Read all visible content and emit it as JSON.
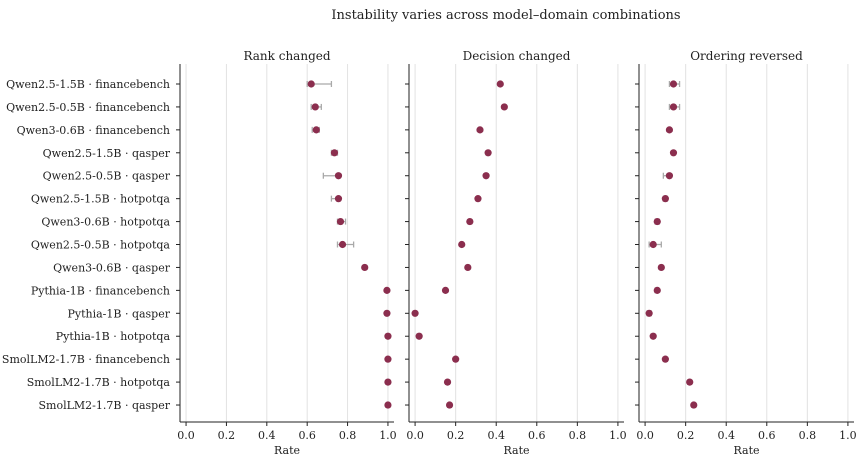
{
  "title": "Instability varies across model–domain combinations",
  "colors": {
    "point": "#8b2e4e",
    "errorbar": "#a9a9a9",
    "grid": "#e2e2e2",
    "axis": "#222222"
  },
  "chart_data": [
    {
      "type": "scatter",
      "subplot": "Rank changed",
      "categories": [
        "Qwen2.5-1.5B · financebench",
        "Qwen2.5-0.5B · financebench",
        "Qwen3-0.6B · financebench",
        "Qwen2.5-1.5B · qasper",
        "Qwen2.5-0.5B · qasper",
        "Qwen2.5-1.5B · hotpotqa",
        "Qwen3-0.6B · hotpotqa",
        "Qwen2.5-0.5B · hotpotqa",
        "Qwen3-0.6B · qasper",
        "Pythia-1B · financebench",
        "Pythia-1B · qasper",
        "Pythia-1B · hotpotqa",
        "SmolLM2-1.7B · financebench",
        "SmolLM2-1.7B · hotpotqa",
        "SmolLM2-1.7B · qasper"
      ],
      "values": [
        0.62,
        0.64,
        0.645,
        0.735,
        0.755,
        0.755,
        0.765,
        0.775,
        0.885,
        0.995,
        0.995,
        1.0,
        1.0,
        1.0,
        1.0
      ],
      "ci_low": [
        0.6,
        0.62,
        0.625,
        0.72,
        0.68,
        0.72,
        0.75,
        0.75,
        0.885,
        0.995,
        0.995,
        1.0,
        1.0,
        1.0,
        1.0
      ],
      "ci_high": [
        0.72,
        0.67,
        0.66,
        0.75,
        0.76,
        0.76,
        0.79,
        0.83,
        0.885,
        0.995,
        0.995,
        1.0,
        1.0,
        1.0,
        1.0
      ],
      "title": "Rank changed",
      "xlabel": "Rate",
      "xlim": [
        -0.03,
        1.03
      ],
      "xticks": [
        "0.0",
        "0.2",
        "0.4",
        "0.6",
        "0.8",
        "1.0"
      ],
      "grid": true
    },
    {
      "type": "scatter",
      "subplot": "Decision changed",
      "categories": [
        "Qwen2.5-1.5B · financebench",
        "Qwen2.5-0.5B · financebench",
        "Qwen3-0.6B · financebench",
        "Qwen2.5-1.5B · qasper",
        "Qwen2.5-0.5B · qasper",
        "Qwen2.5-1.5B · hotpotqa",
        "Qwen3-0.6B · hotpotqa",
        "Qwen2.5-0.5B · hotpotqa",
        "Qwen3-0.6B · qasper",
        "Pythia-1B · financebench",
        "Pythia-1B · qasper",
        "Pythia-1B · hotpotqa",
        "SmolLM2-1.7B · financebench",
        "SmolLM2-1.7B · hotpotqa",
        "SmolLM2-1.7B · qasper"
      ],
      "values": [
        0.42,
        0.44,
        0.32,
        0.36,
        0.35,
        0.31,
        0.27,
        0.23,
        0.26,
        0.15,
        0.0,
        0.02,
        0.2,
        0.16,
        0.17
      ],
      "ci_low": [
        0.42,
        0.44,
        0.32,
        0.36,
        0.35,
        0.31,
        0.27,
        0.23,
        0.26,
        0.15,
        0.0,
        0.02,
        0.2,
        0.16,
        0.17
      ],
      "ci_high": [
        0.42,
        0.44,
        0.32,
        0.36,
        0.35,
        0.31,
        0.27,
        0.23,
        0.26,
        0.15,
        0.0,
        0.02,
        0.2,
        0.16,
        0.17
      ],
      "title": "Decision changed",
      "xlabel": "Rate",
      "xlim": [
        -0.03,
        1.03
      ],
      "xticks": [
        "0.0",
        "0.2",
        "0.4",
        "0.6",
        "0.8",
        "1.0"
      ],
      "grid": true
    },
    {
      "type": "scatter",
      "subplot": "Ordering reversed",
      "categories": [
        "Qwen2.5-1.5B · financebench",
        "Qwen2.5-0.5B · financebench",
        "Qwen3-0.6B · financebench",
        "Qwen2.5-1.5B · qasper",
        "Qwen2.5-0.5B · qasper",
        "Qwen2.5-1.5B · hotpotqa",
        "Qwen3-0.6B · hotpotqa",
        "Qwen2.5-0.5B · hotpotqa",
        "Qwen3-0.6B · qasper",
        "Pythia-1B · financebench",
        "Pythia-1B · qasper",
        "Pythia-1B · hotpotqa",
        "SmolLM2-1.7B · financebench",
        "SmolLM2-1.7B · hotpotqa",
        "SmolLM2-1.7B · qasper"
      ],
      "values": [
        0.14,
        0.14,
        0.12,
        0.14,
        0.12,
        0.1,
        0.06,
        0.04,
        0.08,
        0.06,
        0.02,
        0.04,
        0.1,
        0.22,
        0.24
      ],
      "ci_low": [
        0.12,
        0.12,
        0.12,
        0.14,
        0.09,
        0.09,
        0.05,
        0.02,
        0.08,
        0.05,
        0.01,
        0.04,
        0.1,
        0.22,
        0.24
      ],
      "ci_high": [
        0.17,
        0.17,
        0.12,
        0.14,
        0.12,
        0.11,
        0.07,
        0.08,
        0.08,
        0.06,
        0.03,
        0.04,
        0.1,
        0.22,
        0.24
      ],
      "title": "Ordering reversed",
      "xlabel": "Rate",
      "xlim": [
        -0.03,
        1.03
      ],
      "xticks": [
        "0.0",
        "0.2",
        "0.4",
        "0.6",
        "0.8",
        "1.0"
      ],
      "grid": true
    }
  ]
}
